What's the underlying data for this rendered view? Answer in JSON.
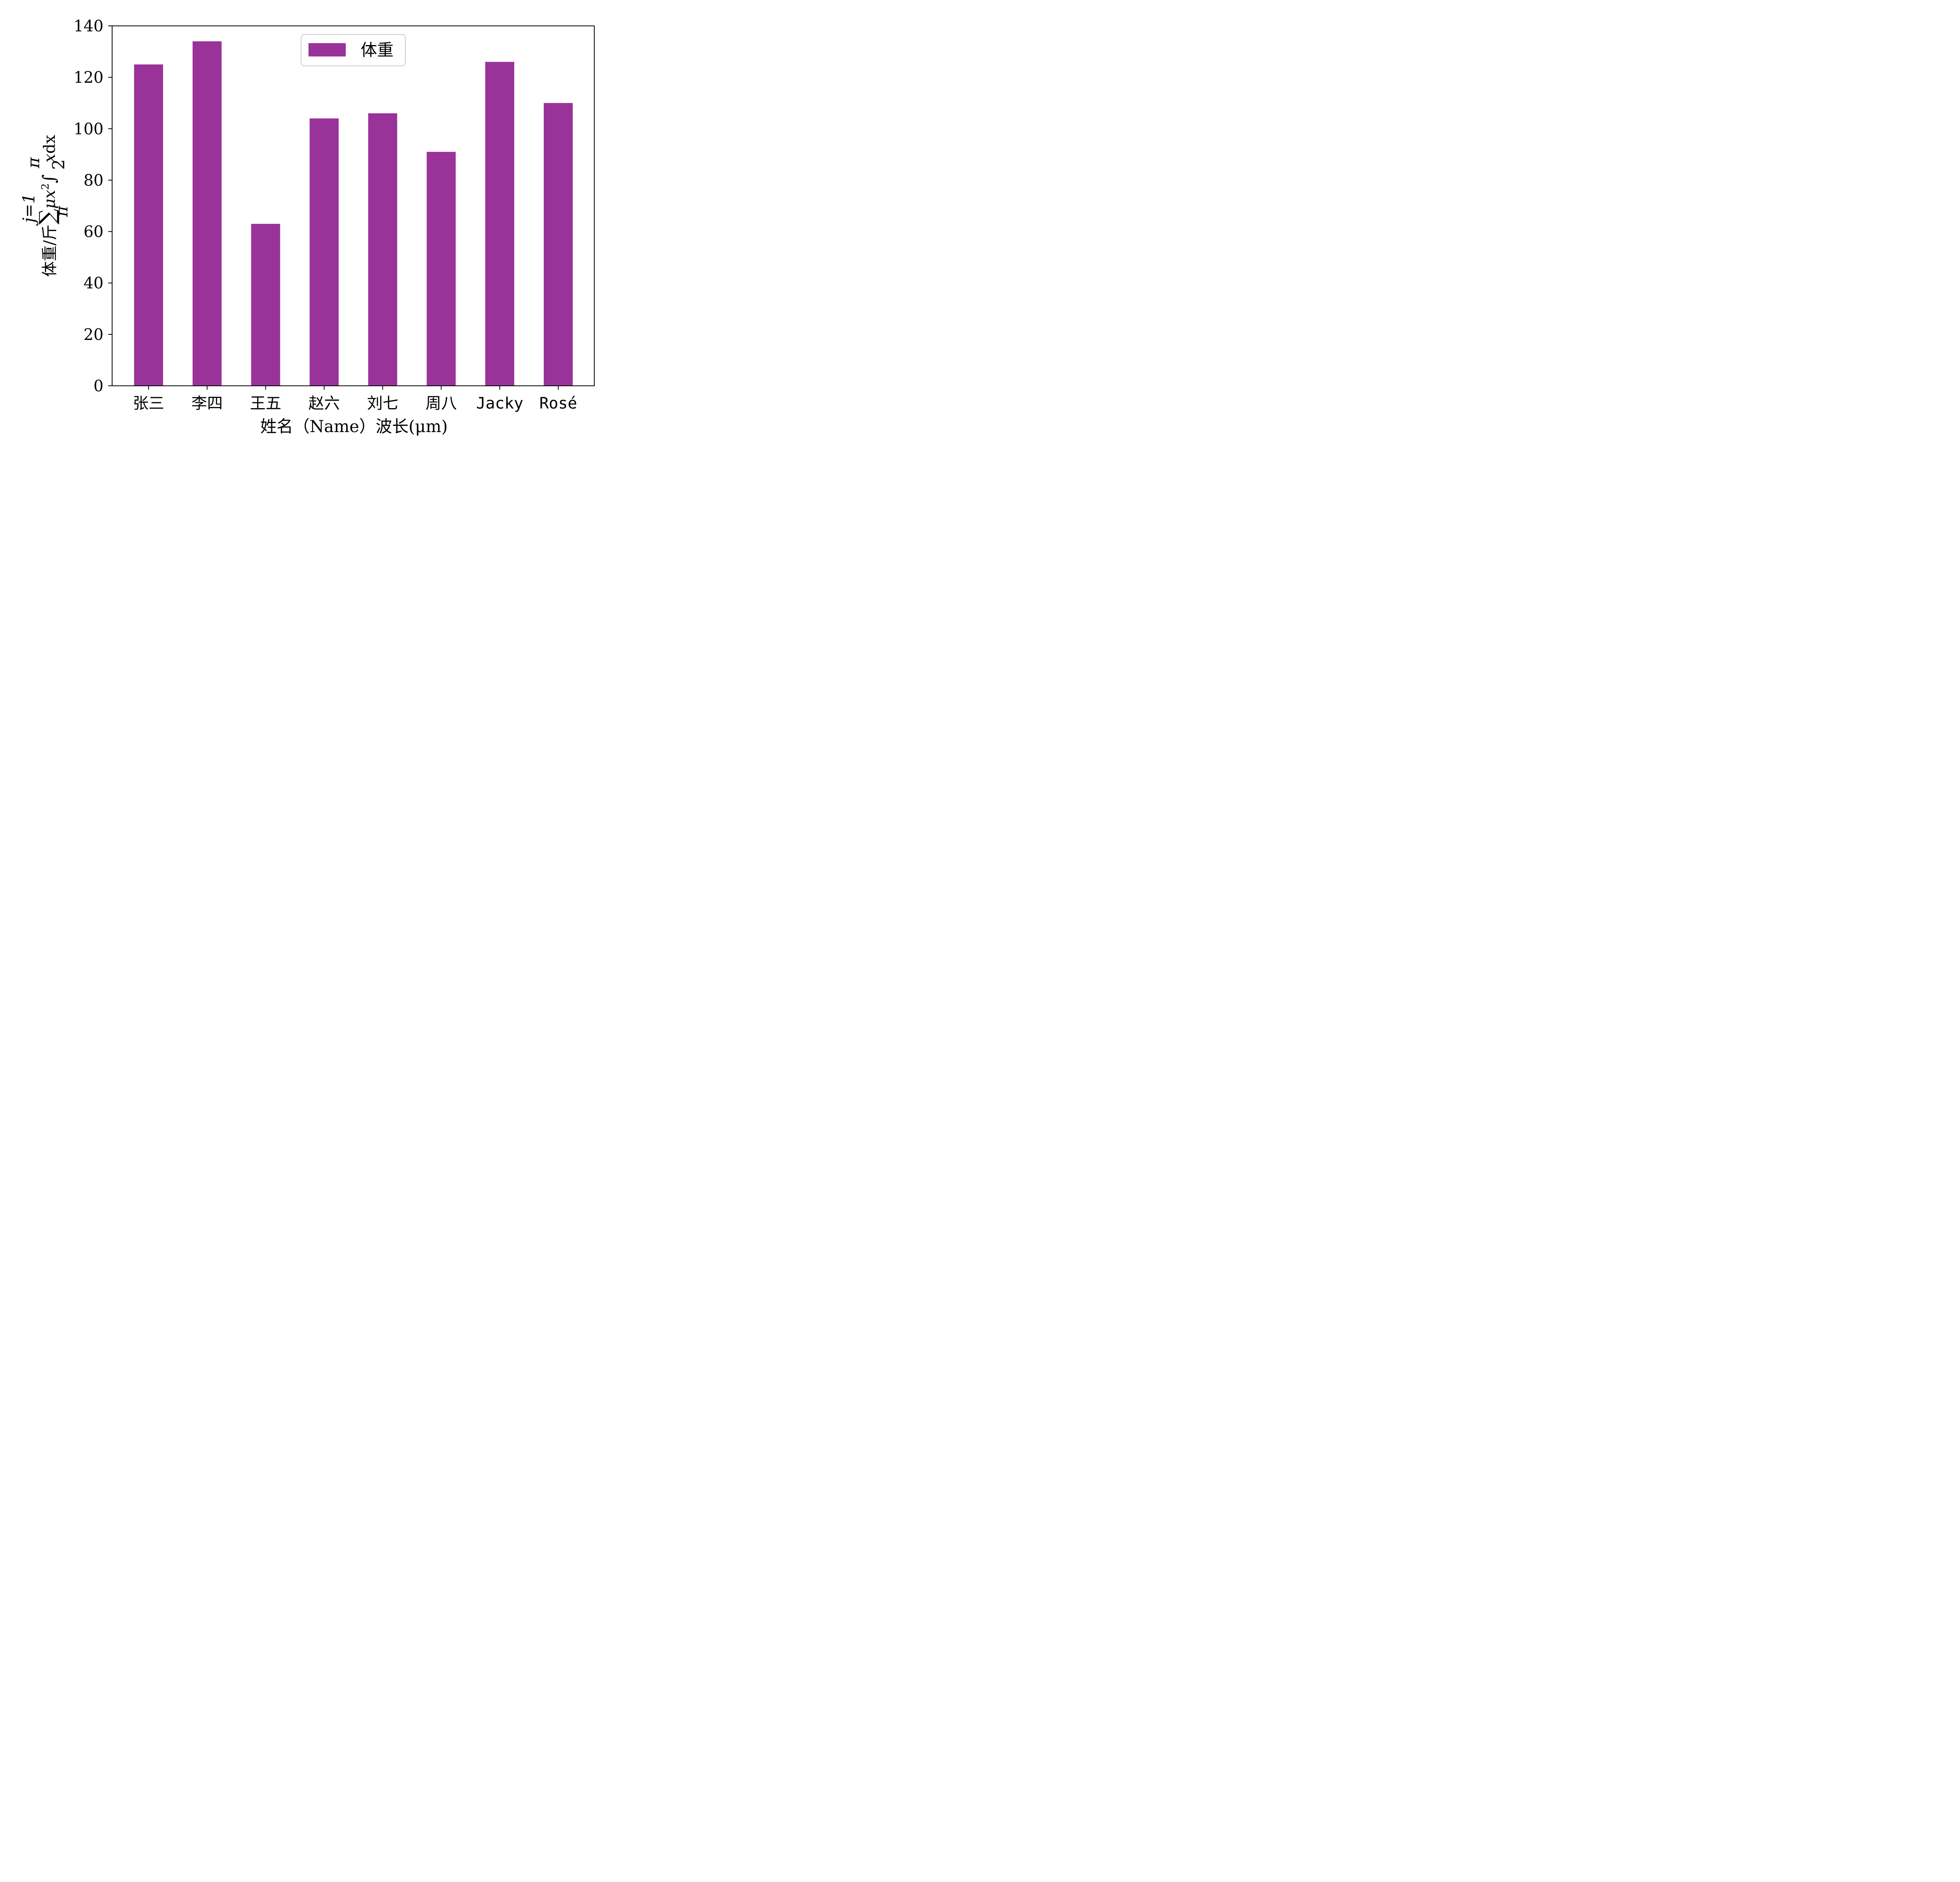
{
  "chart_data": {
    "type": "bar",
    "title": "",
    "categories": [
      "张三",
      "李四",
      "王五",
      "赵六",
      "刘七",
      "周八",
      "Jacky",
      "Rosé"
    ],
    "series": [
      {
        "name": "体重",
        "values": [
          125,
          134,
          63,
          104,
          106,
          91,
          126,
          110
        ],
        "color": "#993399"
      }
    ],
    "xlabel": "姓名（Name）波长(μm)",
    "ylabel": "体重/斤 ∑ μx² ∫ xdx",
    "ylabel_parts": {
      "prefix": "体重/斤",
      "sum_upper": "j=1",
      "sum_lower": "π",
      "integral_upper": "π",
      "integral_lower": "2"
    },
    "ylim": [
      0,
      140
    ],
    "yticks": [
      0,
      20,
      40,
      60,
      80,
      100,
      120,
      140
    ],
    "legend": "top-center",
    "grid": false
  }
}
